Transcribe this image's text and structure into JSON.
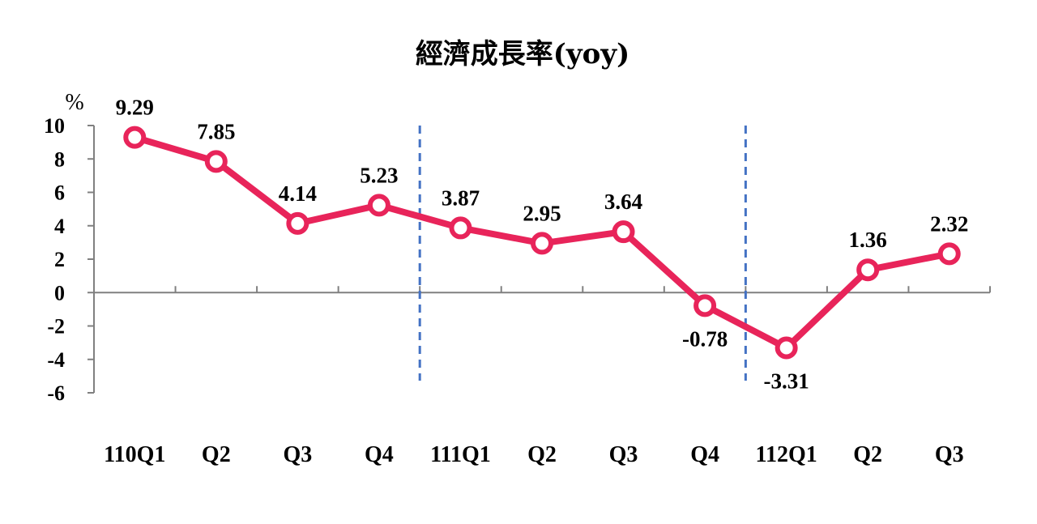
{
  "chart_data": {
    "type": "line",
    "title": "經濟成長率(yoy)",
    "unit_label": "%",
    "categories": [
      "110Q1",
      "Q2",
      "Q3",
      "Q4",
      "111Q1",
      "Q2",
      "Q3",
      "Q4",
      "112Q1",
      "Q2",
      "Q3"
    ],
    "series": [
      {
        "values": [
          9.29,
          7.85,
          4.14,
          5.23,
          3.87,
          2.95,
          3.64,
          -0.78,
          -3.31,
          1.36,
          2.32
        ],
        "color": "#E8245A"
      }
    ],
    "data_labels": [
      "9.29",
      "7.85",
      "4.14",
      "5.23",
      "3.87",
      "2.95",
      "3.64",
      "-0.78",
      "-3.31",
      "1.36",
      "2.32"
    ],
    "y_ticks": [
      "10",
      "8",
      "6",
      "4",
      "2",
      "0",
      "-2",
      "-4",
      "-6"
    ],
    "ylim": [
      -6,
      10
    ],
    "year_dividers_before": [
      "111Q1",
      "112Q1"
    ],
    "divider_color": "#4472C4",
    "grid": false,
    "legend": "none"
  }
}
